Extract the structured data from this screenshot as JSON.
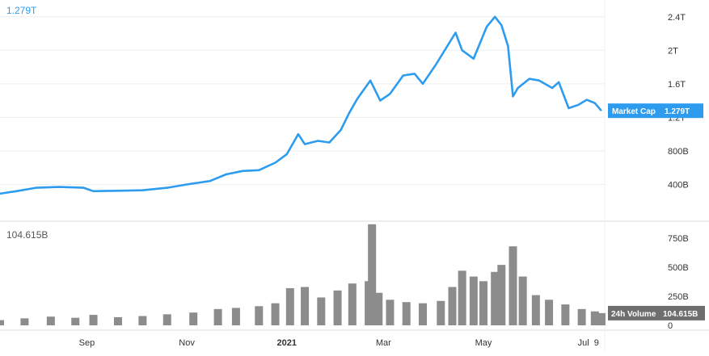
{
  "chart_data": {
    "type": "line",
    "top_readout": "1.279T",
    "bottom_readout": "104.615B",
    "colors": {
      "line": "#2d9cef",
      "bars": "#8c8c8c",
      "grid": "#eeeeee",
      "axis_text": "#333333"
    },
    "x_ticks": [
      {
        "label": "Sep",
        "date": "2020-09-01"
      },
      {
        "label": "Nov",
        "date": "2020-11-01"
      },
      {
        "label": "2021",
        "date": "2021-01-01"
      },
      {
        "label": "Mar",
        "date": "2021-03-01"
      },
      {
        "label": "May",
        "date": "2021-05-01"
      },
      {
        "label": "Jul",
        "date": "2021-07-01"
      },
      {
        "label": "9",
        "date": "2021-07-09"
      }
    ],
    "market_cap": {
      "name": "Market Cap",
      "last_label": "1.279T",
      "y_axis": {
        "ticks": [
          {
            "label": "400B",
            "value": 400
          },
          {
            "label": "800B",
            "value": 800
          },
          {
            "label": "1.2T",
            "value": 1200
          },
          {
            "label": "1.6T",
            "value": 1600
          },
          {
            "label": "2T",
            "value": 2000
          },
          {
            "label": "2.4T",
            "value": 2400
          }
        ],
        "ylim": [
          0,
          2600
        ],
        "unit": "B"
      },
      "points": [
        [
          "2020-07-10",
          290
        ],
        [
          "2020-07-20",
          320
        ],
        [
          "2020-08-01",
          360
        ],
        [
          "2020-08-15",
          370
        ],
        [
          "2020-08-30",
          360
        ],
        [
          "2020-09-05",
          320
        ],
        [
          "2020-09-20",
          325
        ],
        [
          "2020-10-05",
          330
        ],
        [
          "2020-10-20",
          360
        ],
        [
          "2020-11-01",
          400
        ],
        [
          "2020-11-15",
          440
        ],
        [
          "2020-11-25",
          520
        ],
        [
          "2020-12-05",
          560
        ],
        [
          "2020-12-15",
          570
        ],
        [
          "2020-12-25",
          660
        ],
        [
          "2021-01-01",
          760
        ],
        [
          "2021-01-08",
          1000
        ],
        [
          "2021-01-12",
          880
        ],
        [
          "2021-01-20",
          920
        ],
        [
          "2021-01-27",
          900
        ],
        [
          "2021-02-03",
          1050
        ],
        [
          "2021-02-08",
          1250
        ],
        [
          "2021-02-13",
          1420
        ],
        [
          "2021-02-21",
          1640
        ],
        [
          "2021-02-27",
          1400
        ],
        [
          "2021-03-05",
          1480
        ],
        [
          "2021-03-13",
          1700
        ],
        [
          "2021-03-20",
          1720
        ],
        [
          "2021-03-25",
          1600
        ],
        [
          "2021-04-02",
          1830
        ],
        [
          "2021-04-14",
          2210
        ],
        [
          "2021-04-18",
          2000
        ],
        [
          "2021-04-25",
          1900
        ],
        [
          "2021-05-03",
          2280
        ],
        [
          "2021-05-08",
          2400
        ],
        [
          "2021-05-12",
          2300
        ],
        [
          "2021-05-16",
          2050
        ],
        [
          "2021-05-19",
          1450
        ],
        [
          "2021-05-22",
          1550
        ],
        [
          "2021-05-29",
          1660
        ],
        [
          "2021-06-04",
          1640
        ],
        [
          "2021-06-12",
          1550
        ],
        [
          "2021-06-16",
          1620
        ],
        [
          "2021-06-22",
          1310
        ],
        [
          "2021-06-28",
          1350
        ],
        [
          "2021-07-03",
          1410
        ],
        [
          "2021-07-08",
          1370
        ],
        [
          "2021-07-12",
          1279
        ]
      ]
    },
    "volume": {
      "name": "24h Volume",
      "last_label": "104.615B",
      "y_axis": {
        "ticks": [
          {
            "label": "0",
            "value": 0
          },
          {
            "label": "250B",
            "value": 250
          },
          {
            "label": "500B",
            "value": 500
          },
          {
            "label": "750B",
            "value": 750
          }
        ],
        "ylim": [
          0,
          820
        ],
        "unit": "B"
      },
      "bars": [
        [
          "2020-07-10",
          45
        ],
        [
          "2020-07-25",
          60
        ],
        [
          "2020-08-10",
          75
        ],
        [
          "2020-08-25",
          65
        ],
        [
          "2020-09-05",
          90
        ],
        [
          "2020-09-20",
          70
        ],
        [
          "2020-10-05",
          80
        ],
        [
          "2020-10-20",
          95
        ],
        [
          "2020-11-05",
          110
        ],
        [
          "2020-11-20",
          140
        ],
        [
          "2020-12-01",
          150
        ],
        [
          "2020-12-15",
          165
        ],
        [
          "2020-12-25",
          190
        ],
        [
          "2021-01-03",
          320
        ],
        [
          "2021-01-12",
          330
        ],
        [
          "2021-01-22",
          240
        ],
        [
          "2021-02-01",
          300
        ],
        [
          "2021-02-10",
          360
        ],
        [
          "2021-02-20",
          380
        ],
        [
          "2021-02-22",
          870
        ],
        [
          "2021-02-26",
          280
        ],
        [
          "2021-03-05",
          220
        ],
        [
          "2021-03-15",
          200
        ],
        [
          "2021-03-25",
          190
        ],
        [
          "2021-04-05",
          210
        ],
        [
          "2021-04-12",
          330
        ],
        [
          "2021-04-18",
          470
        ],
        [
          "2021-04-25",
          420
        ],
        [
          "2021-05-01",
          380
        ],
        [
          "2021-05-08",
          460
        ],
        [
          "2021-05-12",
          520
        ],
        [
          "2021-05-19",
          680
        ],
        [
          "2021-05-25",
          420
        ],
        [
          "2021-06-02",
          260
        ],
        [
          "2021-06-10",
          220
        ],
        [
          "2021-06-20",
          180
        ],
        [
          "2021-06-30",
          140
        ],
        [
          "2021-07-08",
          120
        ],
        [
          "2021-07-12",
          105
        ]
      ]
    }
  }
}
